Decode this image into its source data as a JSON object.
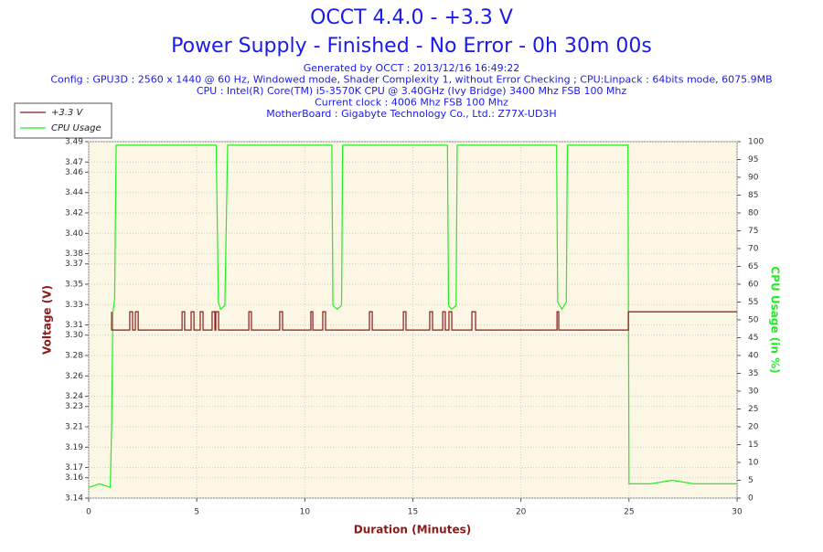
{
  "chart_data": {
    "type": "line",
    "title": "OCCT 4.4.0 - +3.3 V",
    "subtitle": "Power Supply - Finished - No Error - 0h 30m 00s",
    "info": [
      "Generated by OCCT : 2013/12/16 16:49:22",
      "Config : GPU3D : 2560 x 1440 @ 60 Hz, Windowed mode, Shader Complexity 1, without Error Checking ; CPU:Linpack : 64bits mode, 6075.9MB",
      "CPU : Intel(R) Core(TM) i5-3570K CPU @ 3.40GHz (Ivy Bridge) 3400 Mhz FSB 100 Mhz",
      "Current clock : 4006 Mhz FSB 100 Mhz",
      "MotherBoard : Gigabyte Technology Co., Ltd.: Z77X-UD3H"
    ],
    "xlabel": "Duration (Minutes)",
    "ylabel": "Voltage (V)",
    "y2label": "CPU Usage (in %)",
    "xlim": [
      0,
      30
    ],
    "xticks": [
      0,
      5,
      10,
      15,
      20,
      25,
      30
    ],
    "ylim": [
      3.14,
      3.49
    ],
    "yticks": [
      3.14,
      3.16,
      3.17,
      3.19,
      3.21,
      3.23,
      3.24,
      3.26,
      3.28,
      {
        "value": 3.3,
        "label": "3.30"
      },
      3.31,
      3.33,
      3.35,
      3.37,
      3.38,
      {
        "value": 3.4,
        "label": "3.40"
      },
      3.42,
      3.44,
      3.46,
      3.47,
      3.49
    ],
    "y2lim": [
      0,
      100
    ],
    "y2ticks": [
      0,
      5,
      10,
      15,
      20,
      25,
      30,
      35,
      40,
      45,
      50,
      55,
      60,
      65,
      70,
      75,
      80,
      85,
      90,
      95,
      100
    ],
    "grid": true,
    "legend": "top-left",
    "series": [
      {
        "name": "+3.3 V",
        "color": "#8b1a1a",
        "axis": "y",
        "x": [
          1.06,
          1.06,
          1.9,
          1.9,
          2.03,
          2.03,
          2.16,
          2.16,
          2.29,
          2.29,
          4.32,
          4.32,
          4.44,
          4.44,
          4.74,
          4.74,
          4.87,
          4.87,
          5.16,
          5.16,
          5.29,
          5.29,
          5.71,
          5.71,
          5.84,
          5.84,
          5.88,
          5.88,
          6.01,
          6.01,
          7.41,
          7.41,
          7.53,
          7.53,
          8.84,
          8.84,
          8.97,
          8.97,
          10.28,
          10.28,
          10.37,
          10.37,
          10.83,
          10.83,
          10.96,
          10.96,
          12.99,
          12.99,
          13.12,
          13.12,
          14.56,
          14.56,
          14.68,
          14.68,
          15.78,
          15.78,
          15.91,
          15.91,
          16.38,
          16.38,
          16.5,
          16.5,
          16.67,
          16.67,
          16.8,
          16.8,
          17.73,
          17.73,
          17.9,
          17.9,
          21.67,
          21.67,
          21.75,
          21.75,
          24.97,
          24.97,
          30
        ],
        "values": [
          3.323,
          3.305,
          3.305,
          3.323,
          3.323,
          3.305,
          3.305,
          3.323,
          3.323,
          3.305,
          3.305,
          3.323,
          3.323,
          3.305,
          3.305,
          3.323,
          3.323,
          3.305,
          3.305,
          3.323,
          3.323,
          3.305,
          3.305,
          3.323,
          3.323,
          3.305,
          3.305,
          3.323,
          3.323,
          3.305,
          3.305,
          3.323,
          3.323,
          3.305,
          3.305,
          3.323,
          3.323,
          3.305,
          3.305,
          3.323,
          3.323,
          3.305,
          3.305,
          3.323,
          3.323,
          3.305,
          3.305,
          3.323,
          3.323,
          3.305,
          3.305,
          3.323,
          3.323,
          3.305,
          3.305,
          3.323,
          3.323,
          3.305,
          3.305,
          3.323,
          3.323,
          3.305,
          3.305,
          3.323,
          3.323,
          3.305,
          3.305,
          3.323,
          3.323,
          3.305,
          3.305,
          3.323,
          3.323,
          3.305,
          3.305,
          3.323,
          3.323
        ]
      },
      {
        "name": "CPU Usage",
        "color": "#22ee22",
        "axis": "y2",
        "x": [
          0,
          0.5,
          1.0,
          1.06,
          1.12,
          1.2,
          1.27,
          3,
          5.9,
          6.0,
          6.1,
          6.3,
          6.43,
          9,
          11.25,
          11.3,
          11.5,
          11.7,
          11.75,
          14,
          16.6,
          16.65,
          16.8,
          17.0,
          17.05,
          19,
          21.65,
          21.7,
          21.9,
          22.1,
          22.15,
          24,
          24.95,
          25.0,
          26,
          27,
          28,
          29,
          30
        ],
        "values": [
          3,
          4,
          3,
          20,
          52,
          56,
          99,
          99,
          99,
          55,
          53,
          54,
          99,
          99,
          99,
          54,
          53,
          54,
          99,
          99,
          99,
          54,
          53,
          54,
          99,
          99,
          99,
          55,
          53,
          55,
          99,
          99,
          99,
          4,
          4,
          5,
          4,
          4,
          4
        ]
      }
    ]
  }
}
